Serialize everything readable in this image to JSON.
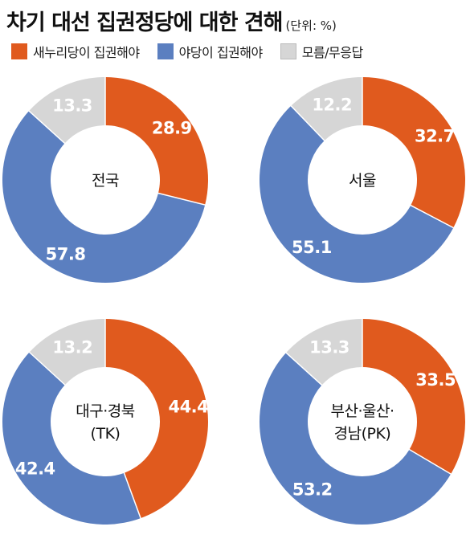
{
  "title": "차기 대선 집권정당에 대한 견해",
  "unit": "(단위: %)",
  "legend": [
    {
      "label": "새누리당이 집권해야",
      "color": "#e05a1e"
    },
    {
      "label": "야당이 집권해야",
      "color": "#5b7fc0"
    },
    {
      "label": "모름/무응답",
      "color": "#d6d6d6"
    }
  ],
  "chart_data": [
    {
      "type": "pie",
      "region": [
        "전국"
      ],
      "categories": [
        "새누리당이 집권해야",
        "야당이 집권해야",
        "모름/무응답"
      ],
      "values": [
        28.9,
        57.8,
        13.3
      ],
      "value_labels": [
        "28.9",
        "57.8",
        "13.3"
      ]
    },
    {
      "type": "pie",
      "region": [
        "서울"
      ],
      "categories": [
        "새누리당이 집권해야",
        "야당이 집권해야",
        "모름/무응답"
      ],
      "values": [
        32.7,
        55.1,
        12.2
      ],
      "value_labels": [
        "32.7",
        "55.1",
        "12.2"
      ]
    },
    {
      "type": "pie",
      "region": [
        "대구·경북",
        "(TK)"
      ],
      "categories": [
        "새누리당이 집권해야",
        "야당이 집권해야",
        "모름/무응답"
      ],
      "values": [
        44.4,
        42.4,
        13.2
      ],
      "value_labels": [
        "44.4",
        "42.4",
        "13.2"
      ]
    },
    {
      "type": "pie",
      "region": [
        "부산·울산·",
        "경남(PK)"
      ],
      "categories": [
        "새누리당이 집권해야",
        "야당이 집권해야",
        "모름/무응답"
      ],
      "values": [
        33.5,
        53.2,
        13.3
      ],
      "value_labels": [
        "33.5",
        "53.2",
        "13.3"
      ]
    }
  ]
}
